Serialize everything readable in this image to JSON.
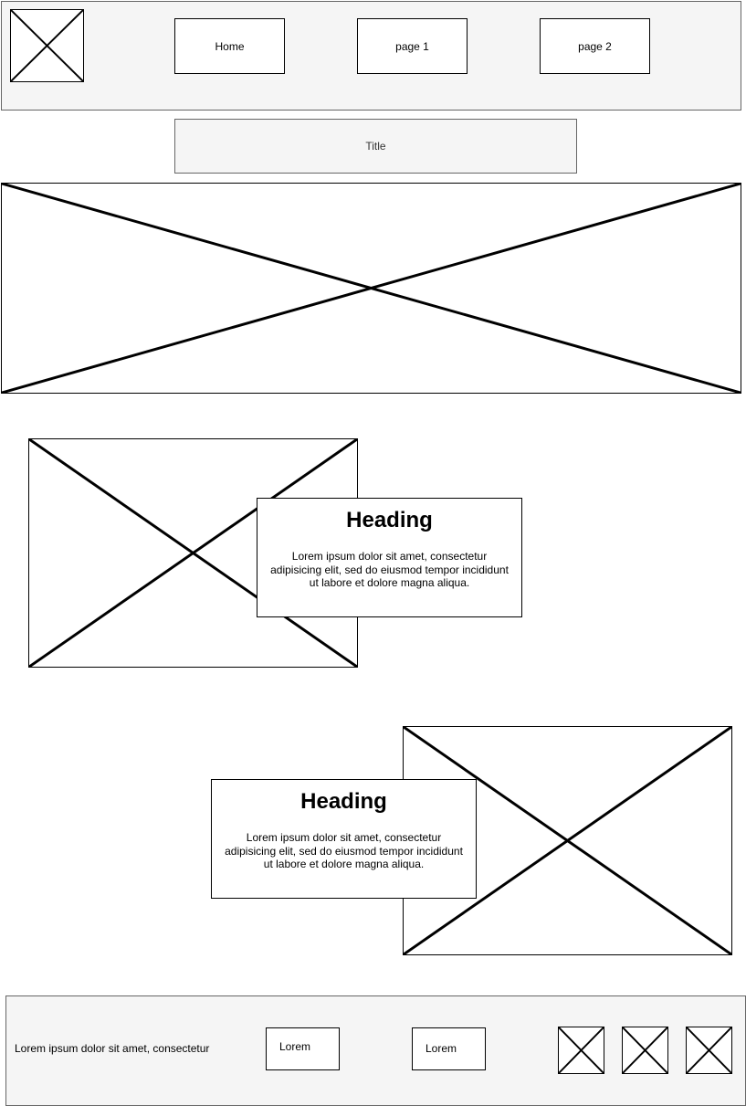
{
  "header": {
    "nav": [
      {
        "label": "Home"
      },
      {
        "label": "page 1"
      },
      {
        "label": "page 2"
      }
    ]
  },
  "title_box": {
    "label": "Title"
  },
  "sections": [
    {
      "heading": "Heading",
      "body": "Lorem ipsum dolor sit amet, consectetur adipisicing elit, sed do eiusmod tempor incididunt ut labore et dolore magna aliqua."
    },
    {
      "heading": "Heading",
      "body": "Lorem ipsum dolor sit amet, consectetur adipisicing elit, sed do eiusmod tempor incididunt ut labore et dolore magna aliqua."
    }
  ],
  "footer": {
    "text": "Lorem ipsum dolor sit amet, consectetur",
    "links": [
      {
        "label": "Lorem"
      },
      {
        "label": "Lorem"
      }
    ],
    "social_icons": [
      "image-placeholder-icon",
      "image-placeholder-icon",
      "image-placeholder-icon"
    ]
  },
  "colors": {
    "panel_fill": "#f5f5f5",
    "panel_border": "#666666",
    "stroke": "#000000"
  }
}
